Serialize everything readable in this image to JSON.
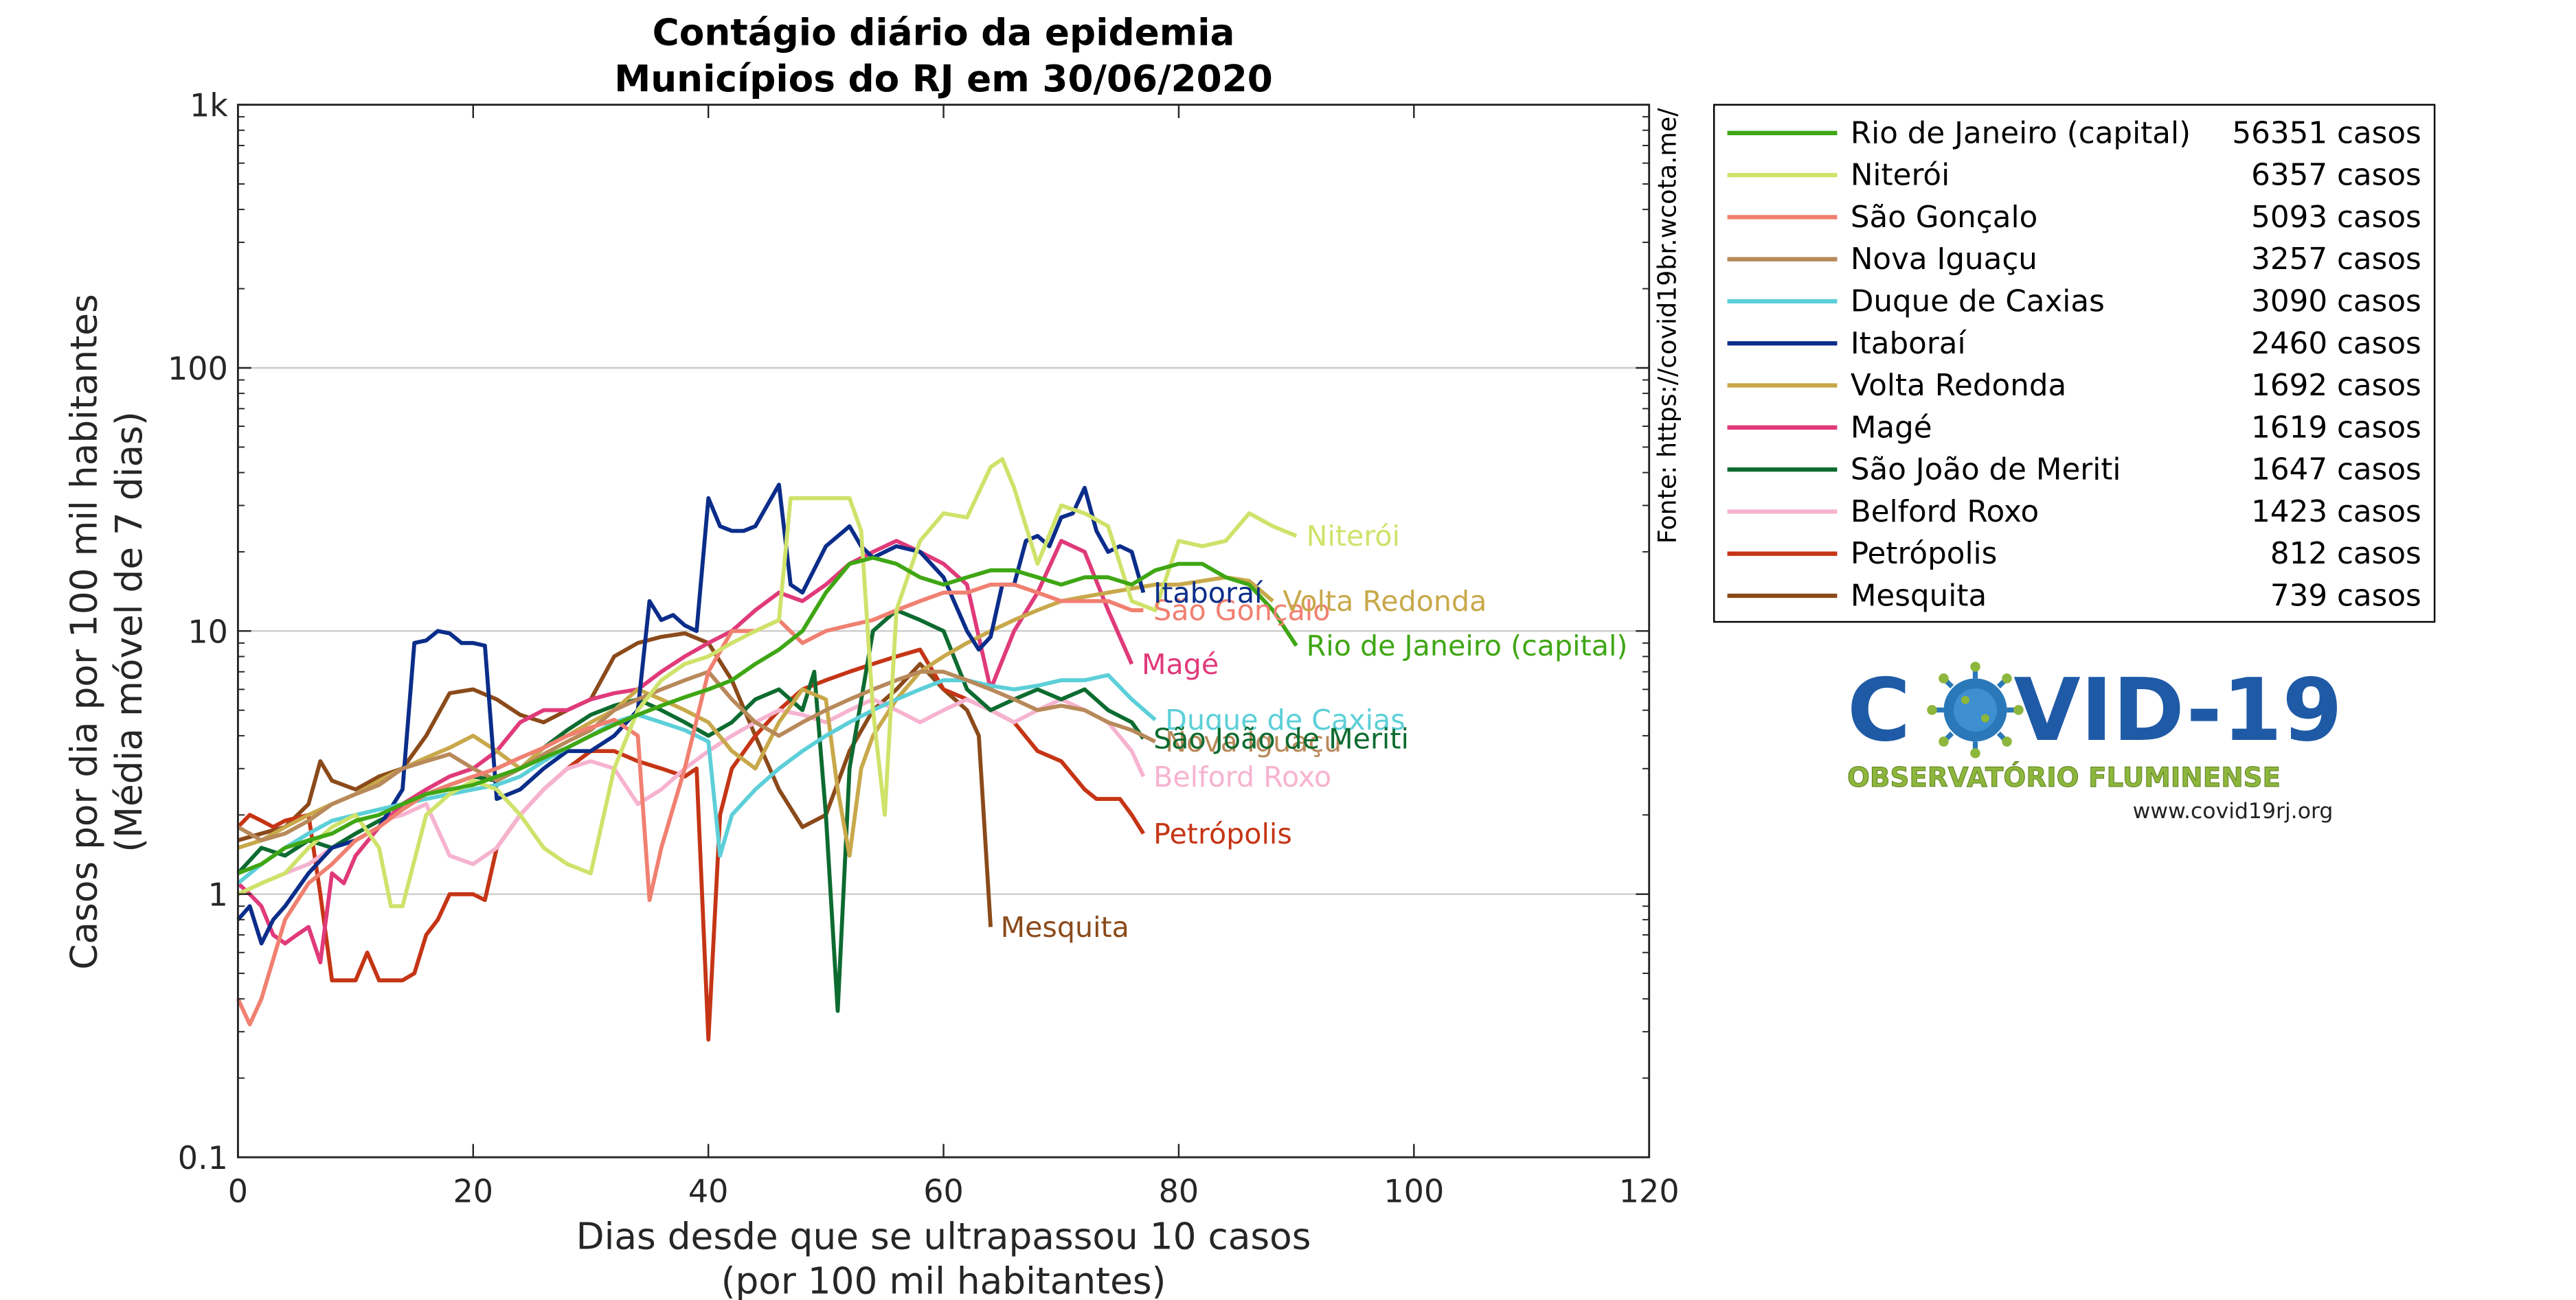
{
  "chart_data": {
    "type": "line",
    "title": [
      "Contágio diário da epidemia",
      "Municípios do RJ em 30/06/2020"
    ],
    "xlabel": [
      "Dias desde que se ultrapassou 10 casos",
      "(por 100 mil habitantes)"
    ],
    "ylabel": [
      "Casos por dia por 100 mil habitantes",
      "(Média móvel de 7 dias)"
    ],
    "xlim": [
      0,
      120
    ],
    "ylim": [
      0.1,
      1000
    ],
    "yscale": "log",
    "xticks": [
      0,
      20,
      40,
      60,
      80,
      100,
      120
    ],
    "xtick_labels": [
      "0",
      "20",
      "40",
      "60",
      "80",
      "100",
      "120"
    ],
    "yticks": [
      0.1,
      1,
      10,
      100,
      1000
    ],
    "ytick_labels": [
      "0.1",
      "1",
      "10",
      "100",
      "1k"
    ],
    "grid": "horizontal at major y ticks",
    "legend_position": "outside right",
    "series": [
      {
        "name": "Rio de Janeiro (capital)",
        "cases": "56351 casos",
        "color": "#3fa614",
        "end_label": "Rio de Janeiro (capital)",
        "x": [
          0,
          2,
          4,
          6,
          8,
          10,
          12,
          14,
          16,
          18,
          20,
          22,
          24,
          26,
          28,
          30,
          32,
          34,
          36,
          38,
          40,
          42,
          44,
          46,
          48,
          50,
          52,
          54,
          56,
          58,
          60,
          62,
          64,
          66,
          68,
          70,
          72,
          74,
          76,
          78,
          80,
          82,
          84,
          86,
          88,
          90
        ],
        "y": [
          1.2,
          1.3,
          1.5,
          1.6,
          1.7,
          1.9,
          2.0,
          2.2,
          2.4,
          2.5,
          2.6,
          2.8,
          3.0,
          3.3,
          3.6,
          4.0,
          4.4,
          4.8,
          5.2,
          5.6,
          6.0,
          6.5,
          7.5,
          8.5,
          10.0,
          14.0,
          18.0,
          19.0,
          18.0,
          16.0,
          15.0,
          16.0,
          17.0,
          17.0,
          16.0,
          15.0,
          16.0,
          16.0,
          15.0,
          17.0,
          18.0,
          18.0,
          16.0,
          15.0,
          12.0,
          8.8
        ]
      },
      {
        "name": "Niterói",
        "cases": "6357 casos",
        "color": "#cfe26a",
        "end_label": "Niterói",
        "x": [
          0,
          2,
          4,
          6,
          8,
          10,
          12,
          13,
          14,
          16,
          18,
          20,
          22,
          24,
          26,
          28,
          30,
          32,
          34,
          36,
          38,
          40,
          42,
          44,
          46,
          47,
          50,
          52,
          53,
          54,
          55,
          56,
          58,
          60,
          62,
          64,
          65,
          66,
          68,
          70,
          72,
          74,
          76,
          78,
          80,
          82,
          84,
          86,
          88,
          90
        ],
        "y": [
          1.0,
          1.1,
          1.2,
          1.5,
          1.8,
          2.0,
          1.5,
          0.9,
          0.9,
          2.0,
          2.4,
          2.7,
          2.5,
          2.0,
          1.5,
          1.3,
          1.2,
          3.0,
          5.0,
          6.5,
          7.5,
          8.0,
          9.0,
          10.0,
          11.0,
          32.0,
          32.0,
          32.0,
          24.0,
          5.0,
          2.0,
          12.0,
          22.0,
          28.0,
          27.0,
          42.0,
          45.0,
          35.0,
          18.0,
          30.0,
          28.0,
          25.0,
          13.0,
          12.0,
          22.0,
          21.0,
          22.0,
          28.0,
          25.0,
          23.0
        ]
      },
      {
        "name": "São Gonçalo",
        "cases": "5093 casos",
        "color": "#f08070",
        "end_label": "São Gonçalo",
        "x": [
          0,
          1,
          2,
          4,
          6,
          8,
          10,
          12,
          14,
          16,
          18,
          20,
          22,
          24,
          26,
          28,
          30,
          32,
          34,
          35,
          36,
          38,
          40,
          42,
          44,
          46,
          48,
          50,
          52,
          54,
          56,
          58,
          60,
          62,
          64,
          66,
          68,
          70,
          72,
          74,
          76,
          77
        ],
        "y": [
          0.4,
          0.32,
          0.4,
          0.8,
          1.1,
          1.3,
          1.6,
          1.8,
          2.1,
          2.4,
          2.6,
          2.8,
          3.0,
          3.3,
          3.6,
          4.0,
          4.3,
          4.6,
          4.0,
          0.95,
          1.5,
          3.0,
          7.0,
          10.0,
          10.0,
          11.0,
          9.0,
          10.0,
          10.5,
          11.0,
          12.0,
          13.0,
          14.0,
          14.0,
          15.0,
          15.0,
          14.0,
          13.0,
          13.0,
          13.0,
          12.0,
          12.0
        ]
      },
      {
        "name": "Nova Iguaçu",
        "cases": "3257 casos",
        "color": "#b8895a",
        "end_label": "Nova Iguaçu",
        "x": [
          0,
          2,
          4,
          6,
          8,
          10,
          12,
          14,
          16,
          18,
          20,
          22,
          24,
          26,
          28,
          30,
          32,
          34,
          36,
          38,
          40,
          42,
          44,
          46,
          48,
          50,
          52,
          54,
          56,
          58,
          60,
          62,
          64,
          66,
          68,
          70,
          72,
          74,
          76,
          78
        ],
        "y": [
          1.8,
          1.6,
          1.7,
          1.9,
          2.2,
          2.4,
          2.6,
          3.0,
          3.2,
          3.4,
          3.0,
          2.7,
          3.0,
          3.4,
          3.8,
          4.2,
          5.0,
          5.5,
          6.0,
          6.5,
          7.0,
          5.5,
          4.5,
          4.0,
          4.5,
          5.0,
          5.5,
          6.0,
          6.5,
          7.0,
          7.0,
          6.5,
          6.0,
          5.5,
          5.0,
          5.2,
          5.0,
          4.5,
          4.2,
          3.8
        ]
      },
      {
        "name": "Duque de Caxias",
        "cases": "3090 casos",
        "color": "#5ccfd8",
        "end_label": "Duque de Caxias",
        "x": [
          0,
          2,
          4,
          6,
          8,
          10,
          12,
          14,
          16,
          18,
          20,
          22,
          24,
          26,
          28,
          30,
          32,
          34,
          36,
          38,
          40,
          41,
          42,
          44,
          46,
          48,
          50,
          52,
          54,
          56,
          58,
          60,
          62,
          64,
          66,
          68,
          70,
          72,
          74,
          76,
          78
        ],
        "y": [
          1.1,
          1.3,
          1.5,
          1.7,
          1.9,
          2.0,
          2.1,
          2.2,
          2.3,
          2.4,
          2.5,
          2.6,
          2.8,
          3.2,
          3.6,
          4.0,
          4.5,
          4.8,
          4.5,
          4.2,
          3.8,
          1.4,
          2.0,
          2.5,
          3.0,
          3.5,
          4.0,
          4.5,
          5.0,
          5.5,
          6.0,
          6.5,
          6.5,
          6.2,
          6.0,
          6.2,
          6.5,
          6.5,
          6.8,
          5.5,
          4.6
        ]
      },
      {
        "name": "Itaboraí",
        "cases": "2460 casos",
        "color": "#0b2d8a",
        "end_label": "Itaboraí",
        "x": [
          0,
          1,
          2,
          3,
          4,
          6,
          8,
          10,
          12,
          14,
          15,
          16,
          17,
          18,
          19,
          20,
          21,
          22,
          24,
          26,
          28,
          30,
          32,
          34,
          35,
          36,
          37,
          38,
          39,
          40,
          41,
          42,
          43,
          44,
          45,
          46,
          47,
          48,
          50,
          52,
          53,
          54,
          56,
          58,
          60,
          62,
          63,
          64,
          65,
          66,
          67,
          68,
          69,
          70,
          71,
          72,
          73,
          74,
          75,
          76,
          77
        ],
        "y": [
          0.8,
          0.9,
          0.65,
          0.8,
          0.9,
          1.2,
          1.5,
          1.6,
          1.8,
          2.5,
          9.0,
          9.2,
          10.0,
          9.8,
          9.0,
          9.0,
          8.8,
          2.3,
          2.5,
          3.0,
          3.5,
          3.5,
          4.0,
          5.0,
          13.0,
          11.0,
          11.5,
          10.5,
          10.0,
          32.0,
          25.0,
          24.0,
          24.0,
          25.0,
          30.0,
          36.0,
          15.0,
          14.0,
          21.0,
          25.0,
          21.0,
          19.0,
          21.0,
          20.0,
          16.0,
          10.0,
          8.5,
          9.5,
          15.0,
          15.0,
          22.0,
          23.0,
          21.0,
          27.0,
          28.0,
          35.0,
          24.0,
          20.0,
          21.0,
          20.0,
          14.0
        ]
      },
      {
        "name": "Volta Redonda",
        "cases": "1692 casos",
        "color": "#c8a84a",
        "end_label": "Volta Redonda",
        "x": [
          0,
          2,
          4,
          6,
          8,
          10,
          12,
          14,
          16,
          18,
          20,
          22,
          24,
          26,
          28,
          30,
          32,
          34,
          36,
          38,
          40,
          42,
          44,
          46,
          48,
          50,
          51,
          52,
          53,
          54,
          56,
          58,
          60,
          62,
          64,
          66,
          68,
          70,
          72,
          74,
          76,
          78,
          80,
          82,
          84,
          86,
          88
        ],
        "y": [
          1.5,
          1.6,
          1.8,
          2.0,
          2.2,
          2.4,
          2.7,
          3.0,
          3.3,
          3.6,
          4.0,
          3.5,
          3.0,
          3.6,
          4.0,
          4.5,
          5.0,
          6.0,
          5.5,
          5.0,
          4.5,
          3.5,
          3.0,
          4.5,
          6.0,
          5.5,
          2.5,
          1.4,
          3.0,
          4.0,
          5.5,
          7.0,
          8.0,
          9.0,
          10.0,
          11.0,
          12.0,
          13.0,
          13.5,
          14.0,
          14.5,
          15.0,
          15.0,
          15.5,
          16.0,
          15.5,
          13.0
        ]
      },
      {
        "name": "Magé",
        "cases": "1619 casos",
        "color": "#e03a7a",
        "end_label": "Magé",
        "x": [
          0,
          1,
          2,
          3,
          4,
          5,
          6,
          7,
          8,
          9,
          10,
          12,
          14,
          16,
          18,
          20,
          22,
          24,
          26,
          28,
          30,
          32,
          34,
          36,
          38,
          40,
          42,
          44,
          46,
          48,
          50,
          52,
          54,
          56,
          58,
          60,
          62,
          64,
          66,
          68,
          70,
          72,
          74,
          76
        ],
        "y": [
          1.1,
          1.0,
          0.9,
          0.7,
          0.65,
          0.7,
          0.75,
          0.55,
          1.2,
          1.1,
          1.4,
          1.8,
          2.2,
          2.5,
          2.8,
          3.0,
          3.5,
          4.5,
          5.0,
          5.0,
          5.5,
          5.8,
          6.0,
          7.0,
          8.0,
          9.0,
          10.0,
          12.0,
          14.0,
          13.0,
          15.0,
          18.0,
          20.0,
          22.0,
          20.0,
          18.0,
          15.0,
          6.0,
          10.0,
          14.0,
          22.0,
          20.0,
          12.0,
          7.5
        ]
      },
      {
        "name": "São João de Meriti",
        "cases": "1647 casos",
        "color": "#0d6b30",
        "end_label": "São João de Meriti",
        "x": [
          0,
          2,
          4,
          6,
          8,
          10,
          12,
          14,
          16,
          18,
          20,
          22,
          24,
          26,
          28,
          30,
          32,
          34,
          36,
          38,
          40,
          42,
          44,
          46,
          48,
          49,
          50,
          51,
          52,
          54,
          56,
          58,
          60,
          62,
          64,
          66,
          68,
          70,
          72,
          74,
          76,
          77
        ],
        "y": [
          1.2,
          1.5,
          1.4,
          1.6,
          1.5,
          1.7,
          1.9,
          2.1,
          2.4,
          2.6,
          2.8,
          2.7,
          3.0,
          3.6,
          4.2,
          4.8,
          5.2,
          5.5,
          5.0,
          4.5,
          4.0,
          4.5,
          5.5,
          6.0,
          5.0,
          7.0,
          2.0,
          0.36,
          3.0,
          10.0,
          12.0,
          11.0,
          10.0,
          6.0,
          5.0,
          5.5,
          6.0,
          5.5,
          6.0,
          5.0,
          4.5,
          3.9
        ]
      },
      {
        "name": "Belford Roxo",
        "cases": "1423 casos",
        "color": "#f6b3cf",
        "end_label": "Belford Roxo",
        "x": [
          0,
          2,
          4,
          6,
          8,
          10,
          12,
          14,
          16,
          18,
          20,
          22,
          24,
          26,
          28,
          30,
          32,
          34,
          36,
          38,
          40,
          42,
          44,
          46,
          48,
          50,
          52,
          54,
          56,
          58,
          60,
          62,
          64,
          66,
          68,
          70,
          72,
          74,
          76,
          77
        ],
        "y": [
          1.0,
          1.1,
          1.2,
          1.3,
          1.5,
          1.7,
          1.9,
          2.0,
          2.2,
          1.4,
          1.3,
          1.5,
          2.0,
          2.5,
          3.0,
          3.2,
          3.0,
          2.2,
          2.5,
          3.0,
          3.5,
          4.0,
          4.5,
          5.0,
          4.8,
          4.5,
          5.0,
          5.5,
          5.0,
          4.5,
          5.0,
          5.5,
          5.0,
          4.5,
          5.0,
          5.5,
          5.0,
          4.5,
          3.5,
          2.8
        ]
      },
      {
        "name": "Petrópolis",
        "cases": "812 casos",
        "color": "#c53515",
        "end_label": "Petrópolis",
        "x": [
          0,
          1,
          2,
          3,
          4,
          6,
          7,
          8,
          9,
          10,
          11,
          12,
          13,
          14,
          15,
          16,
          17,
          18,
          20,
          21,
          22,
          24,
          26,
          28,
          30,
          32,
          34,
          36,
          38,
          39,
          40,
          41,
          42,
          44,
          46,
          48,
          50,
          52,
          54,
          56,
          58,
          60,
          62,
          64,
          66,
          68,
          70,
          72,
          73,
          74,
          75,
          76,
          77
        ],
        "y": [
          1.8,
          2.0,
          1.9,
          1.8,
          1.9,
          2.0,
          1.0,
          0.47,
          0.47,
          0.47,
          0.6,
          0.47,
          0.47,
          0.47,
          0.5,
          0.7,
          0.8,
          1.0,
          1.0,
          0.95,
          1.5,
          2.0,
          2.5,
          3.0,
          3.5,
          3.5,
          3.2,
          3.0,
          2.8,
          3.0,
          0.28,
          2.0,
          3.0,
          4.0,
          5.0,
          6.0,
          6.5,
          7.0,
          7.5,
          8.0,
          8.5,
          6.0,
          5.5,
          5.0,
          4.5,
          3.5,
          3.2,
          2.5,
          2.3,
          2.3,
          2.3,
          2.0,
          1.7
        ]
      },
      {
        "name": "Mesquita",
        "cases": "739 casos",
        "color": "#8b4a1a",
        "end_label": "Mesquita",
        "x": [
          0,
          2,
          4,
          6,
          7,
          8,
          10,
          12,
          14,
          16,
          18,
          20,
          22,
          24,
          26,
          28,
          30,
          32,
          34,
          36,
          38,
          40,
          42,
          44,
          46,
          48,
          50,
          52,
          54,
          56,
          58,
          60,
          62,
          63,
          64
        ],
        "y": [
          1.6,
          1.7,
          1.8,
          2.2,
          3.2,
          2.7,
          2.5,
          2.8,
          3.0,
          4.0,
          5.8,
          6.0,
          5.5,
          4.8,
          4.5,
          5.0,
          5.5,
          8.0,
          9.0,
          9.5,
          9.8,
          9.0,
          6.5,
          4.0,
          2.5,
          1.8,
          2.0,
          3.5,
          5.0,
          6.0,
          7.5,
          6.0,
          5.0,
          4.0,
          0.75
        ]
      }
    ]
  },
  "source_label": "Fonte: https://covid19br.wcota.me/",
  "logo": {
    "text_left": "C",
    "text_right": "VID-19",
    "subtitle": "OBSERVATÓRIO FLUMINENSE",
    "url": "www.covid19rj.org",
    "color_main": "#1f5aa6",
    "color_sub": "#8db63c"
  }
}
